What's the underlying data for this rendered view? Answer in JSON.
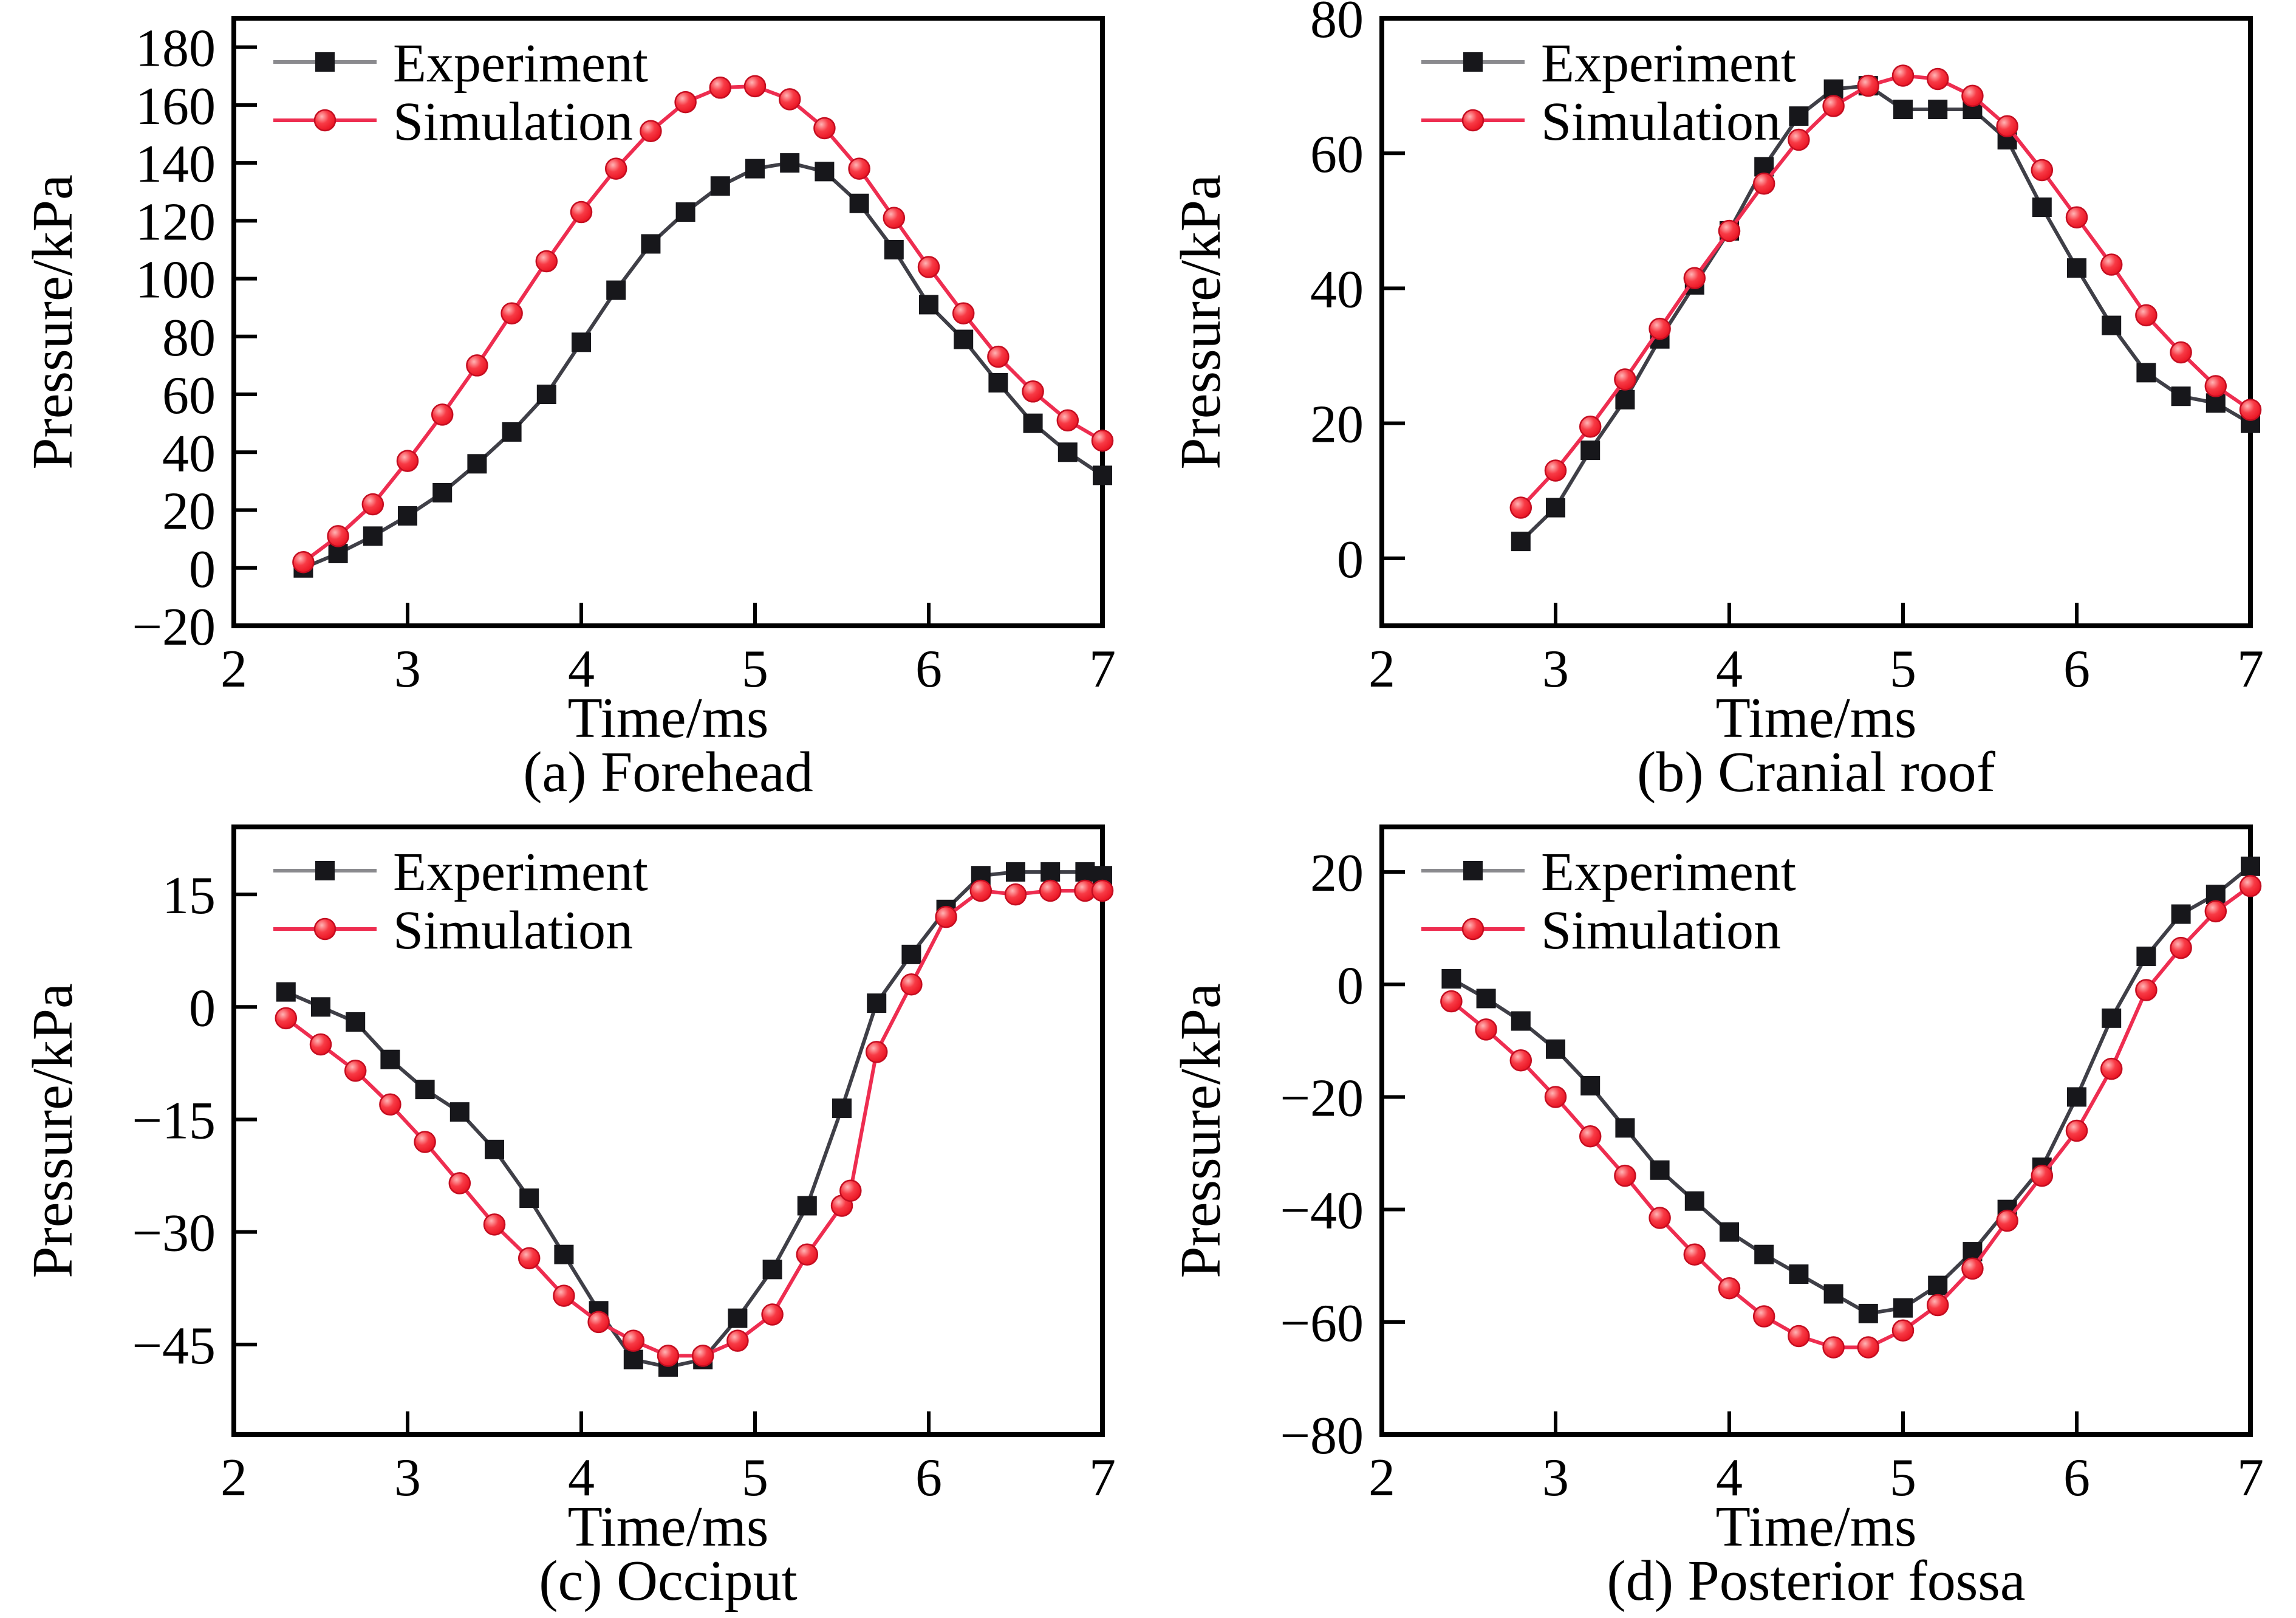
{
  "figure": {
    "legend": {
      "experiment_label": "Experiment",
      "simulation_label": "Simulation"
    },
    "colors": {
      "experiment_line": "#3f3f47",
      "experiment_marker": "#17171b",
      "simulation_line": "#ee2d50",
      "simulation_marker_core": "#e8101f",
      "simulation_marker_mid": "#f83a45",
      "simulation_marker_light": "#ffb5b5",
      "simulation_marker_edge": "#c40d20",
      "axis": "#000000"
    }
  },
  "chart_data": [
    {
      "id": "forehead",
      "type": "line",
      "caption": "(a) Forehead",
      "xlabel": "Time/ms",
      "ylabel": "Pressure/kPa",
      "xlim": [
        2,
        7
      ],
      "ylim": [
        -20,
        190
      ],
      "xticks": [
        2,
        3,
        4,
        5,
        6,
        7
      ],
      "yticks": [
        -20,
        0,
        20,
        40,
        60,
        80,
        100,
        120,
        140,
        160,
        180
      ],
      "legend_position": "top-left",
      "grid": false,
      "series": [
        {
          "name": "Experiment",
          "marker": "square",
          "x": [
            2.4,
            2.6,
            2.8,
            3.0,
            3.2,
            3.4,
            3.6,
            3.8,
            4.0,
            4.2,
            4.4,
            4.6,
            4.8,
            5.0,
            5.2,
            5.4,
            5.6,
            5.8,
            6.0,
            6.2,
            6.4,
            6.6,
            6.8,
            7.0
          ],
          "y": [
            0,
            5,
            11,
            18,
            26,
            36,
            47,
            60,
            78,
            96,
            112,
            123,
            132,
            138,
            140,
            137,
            126,
            110,
            91,
            79,
            64,
            50,
            40,
            32
          ]
        },
        {
          "name": "Simulation",
          "marker": "circle",
          "x": [
            2.4,
            2.6,
            2.8,
            3.0,
            3.2,
            3.4,
            3.6,
            3.8,
            4.0,
            4.2,
            4.4,
            4.6,
            4.8,
            5.0,
            5.2,
            5.4,
            5.6,
            5.8,
            6.0,
            6.2,
            6.4,
            6.6,
            6.8,
            7.0
          ],
          "y": [
            2,
            11,
            22,
            37,
            53,
            70,
            88,
            106,
            123,
            138,
            151,
            161,
            166,
            166.5,
            162,
            152,
            138,
            121,
            104,
            88,
            73,
            61,
            51,
            44
          ]
        }
      ]
    },
    {
      "id": "cranial-roof",
      "type": "line",
      "caption": "(b) Cranial roof",
      "xlabel": "Time/ms",
      "ylabel": "Pressure/kPa",
      "xlim": [
        2,
        7
      ],
      "ylim": [
        -10,
        80
      ],
      "xticks": [
        2,
        3,
        4,
        5,
        6,
        7
      ],
      "yticks": [
        0,
        20,
        40,
        60,
        80
      ],
      "legend_position": "top-left",
      "grid": false,
      "series": [
        {
          "name": "Experiment",
          "marker": "square",
          "x": [
            2.8,
            3.0,
            3.2,
            3.4,
            3.6,
            3.8,
            4.0,
            4.2,
            4.4,
            4.6,
            4.8,
            5.0,
            5.2,
            5.4,
            5.6,
            5.8,
            6.0,
            6.2,
            6.4,
            6.6,
            6.8,
            7.0
          ],
          "y": [
            2.5,
            7.5,
            16,
            23.5,
            32.5,
            40.5,
            48.5,
            58,
            65.5,
            69.5,
            70,
            66.5,
            66.5,
            66.5,
            62,
            52,
            43,
            34.5,
            27.5,
            24,
            23,
            20
          ]
        },
        {
          "name": "Simulation",
          "marker": "circle",
          "x": [
            2.8,
            3.0,
            3.2,
            3.4,
            3.6,
            3.8,
            4.0,
            4.2,
            4.4,
            4.6,
            4.8,
            5.0,
            5.2,
            5.4,
            5.6,
            5.8,
            6.0,
            6.2,
            6.4,
            6.6,
            6.8,
            7.0
          ],
          "y": [
            7.5,
            13,
            19.5,
            26.5,
            34,
            41.5,
            48.5,
            55.5,
            62,
            67,
            70,
            71.5,
            71,
            68.5,
            64,
            57.5,
            50.5,
            43.5,
            36,
            30.5,
            25.5,
            22
          ]
        }
      ]
    },
    {
      "id": "occiput",
      "type": "line",
      "caption": "(c) Occiput",
      "xlabel": "Time/ms",
      "ylabel": "Pressure/kPa",
      "xlim": [
        2,
        7
      ],
      "ylim": [
        -57,
        24
      ],
      "xticks": [
        2,
        3,
        4,
        5,
        6,
        7
      ],
      "yticks": [
        15,
        0,
        -15,
        -30,
        -45
      ],
      "legend_position": "top-left",
      "grid": false,
      "series": [
        {
          "name": "Experiment",
          "marker": "square",
          "x": [
            2.3,
            2.5,
            2.7,
            2.9,
            3.1,
            3.3,
            3.5,
            3.7,
            3.9,
            4.1,
            4.3,
            4.5,
            4.7,
            4.9,
            5.1,
            5.3,
            5.5,
            5.7,
            5.9,
            6.1,
            6.3,
            6.5,
            6.7,
            6.9,
            7.0
          ],
          "y": [
            2,
            0,
            -2,
            -7,
            -11,
            -14,
            -19,
            -25.5,
            -33,
            -40.5,
            -47,
            -48,
            -47,
            -41.5,
            -35,
            -26.5,
            -13.5,
            0.5,
            7,
            13,
            17.5,
            18,
            18,
            18,
            17.5
          ]
        },
        {
          "name": "Simulation",
          "marker": "circle",
          "x": [
            2.3,
            2.5,
            2.7,
            2.9,
            3.1,
            3.3,
            3.5,
            3.7,
            3.9,
            4.1,
            4.3,
            4.5,
            4.7,
            4.9,
            5.1,
            5.3,
            5.5,
            5.55,
            5.7,
            5.9,
            6.1,
            6.3,
            6.5,
            6.7,
            6.9,
            7.0
          ],
          "y": [
            -1.5,
            -5,
            -8.5,
            -13,
            -18,
            -23.5,
            -29,
            -33.5,
            -38.5,
            -42,
            -44.5,
            -46.5,
            -46.5,
            -44.5,
            -41,
            -33,
            -26.5,
            -24.5,
            -6,
            3,
            12,
            15.5,
            15,
            15.5,
            15.5,
            15.5
          ]
        }
      ]
    },
    {
      "id": "posterior-fossa",
      "type": "line",
      "caption": "(d) Posterior fossa",
      "xlabel": "Time/ms",
      "ylabel": "Pressure/kPa",
      "xlim": [
        2,
        7
      ],
      "ylim": [
        -80,
        28
      ],
      "xticks": [
        2,
        3,
        4,
        5,
        6,
        7
      ],
      "yticks": [
        20,
        0,
        -20,
        -40,
        -60,
        -80
      ],
      "legend_position": "top-left",
      "grid": false,
      "series": [
        {
          "name": "Experiment",
          "marker": "square",
          "x": [
            2.4,
            2.6,
            2.8,
            3.0,
            3.2,
            3.4,
            3.6,
            3.8,
            4.0,
            4.2,
            4.4,
            4.6,
            4.8,
            5.0,
            5.2,
            5.4,
            5.6,
            5.8,
            6.0,
            6.2,
            6.4,
            6.6,
            6.8,
            7.0
          ],
          "y": [
            1,
            -2.5,
            -6.5,
            -11.5,
            -18,
            -25.5,
            -33,
            -38.5,
            -44,
            -48,
            -51.5,
            -55,
            -58.5,
            -57.5,
            -53.5,
            -47.5,
            -40,
            -32.5,
            -20,
            -6,
            5,
            12.5,
            16,
            21
          ]
        },
        {
          "name": "Simulation",
          "marker": "circle",
          "x": [
            2.4,
            2.6,
            2.8,
            3.0,
            3.2,
            3.4,
            3.6,
            3.8,
            4.0,
            4.2,
            4.4,
            4.6,
            4.8,
            5.0,
            5.2,
            5.4,
            5.6,
            5.8,
            6.0,
            6.2,
            6.4,
            6.6,
            6.8,
            7.0
          ],
          "y": [
            -3,
            -8,
            -13.5,
            -20,
            -27,
            -34,
            -41.5,
            -48,
            -54,
            -59,
            -62.5,
            -64.5,
            -64.5,
            -61.5,
            -57,
            -50.5,
            -42,
            -34,
            -26,
            -15,
            -1,
            6.5,
            13,
            17.5
          ]
        }
      ]
    }
  ]
}
